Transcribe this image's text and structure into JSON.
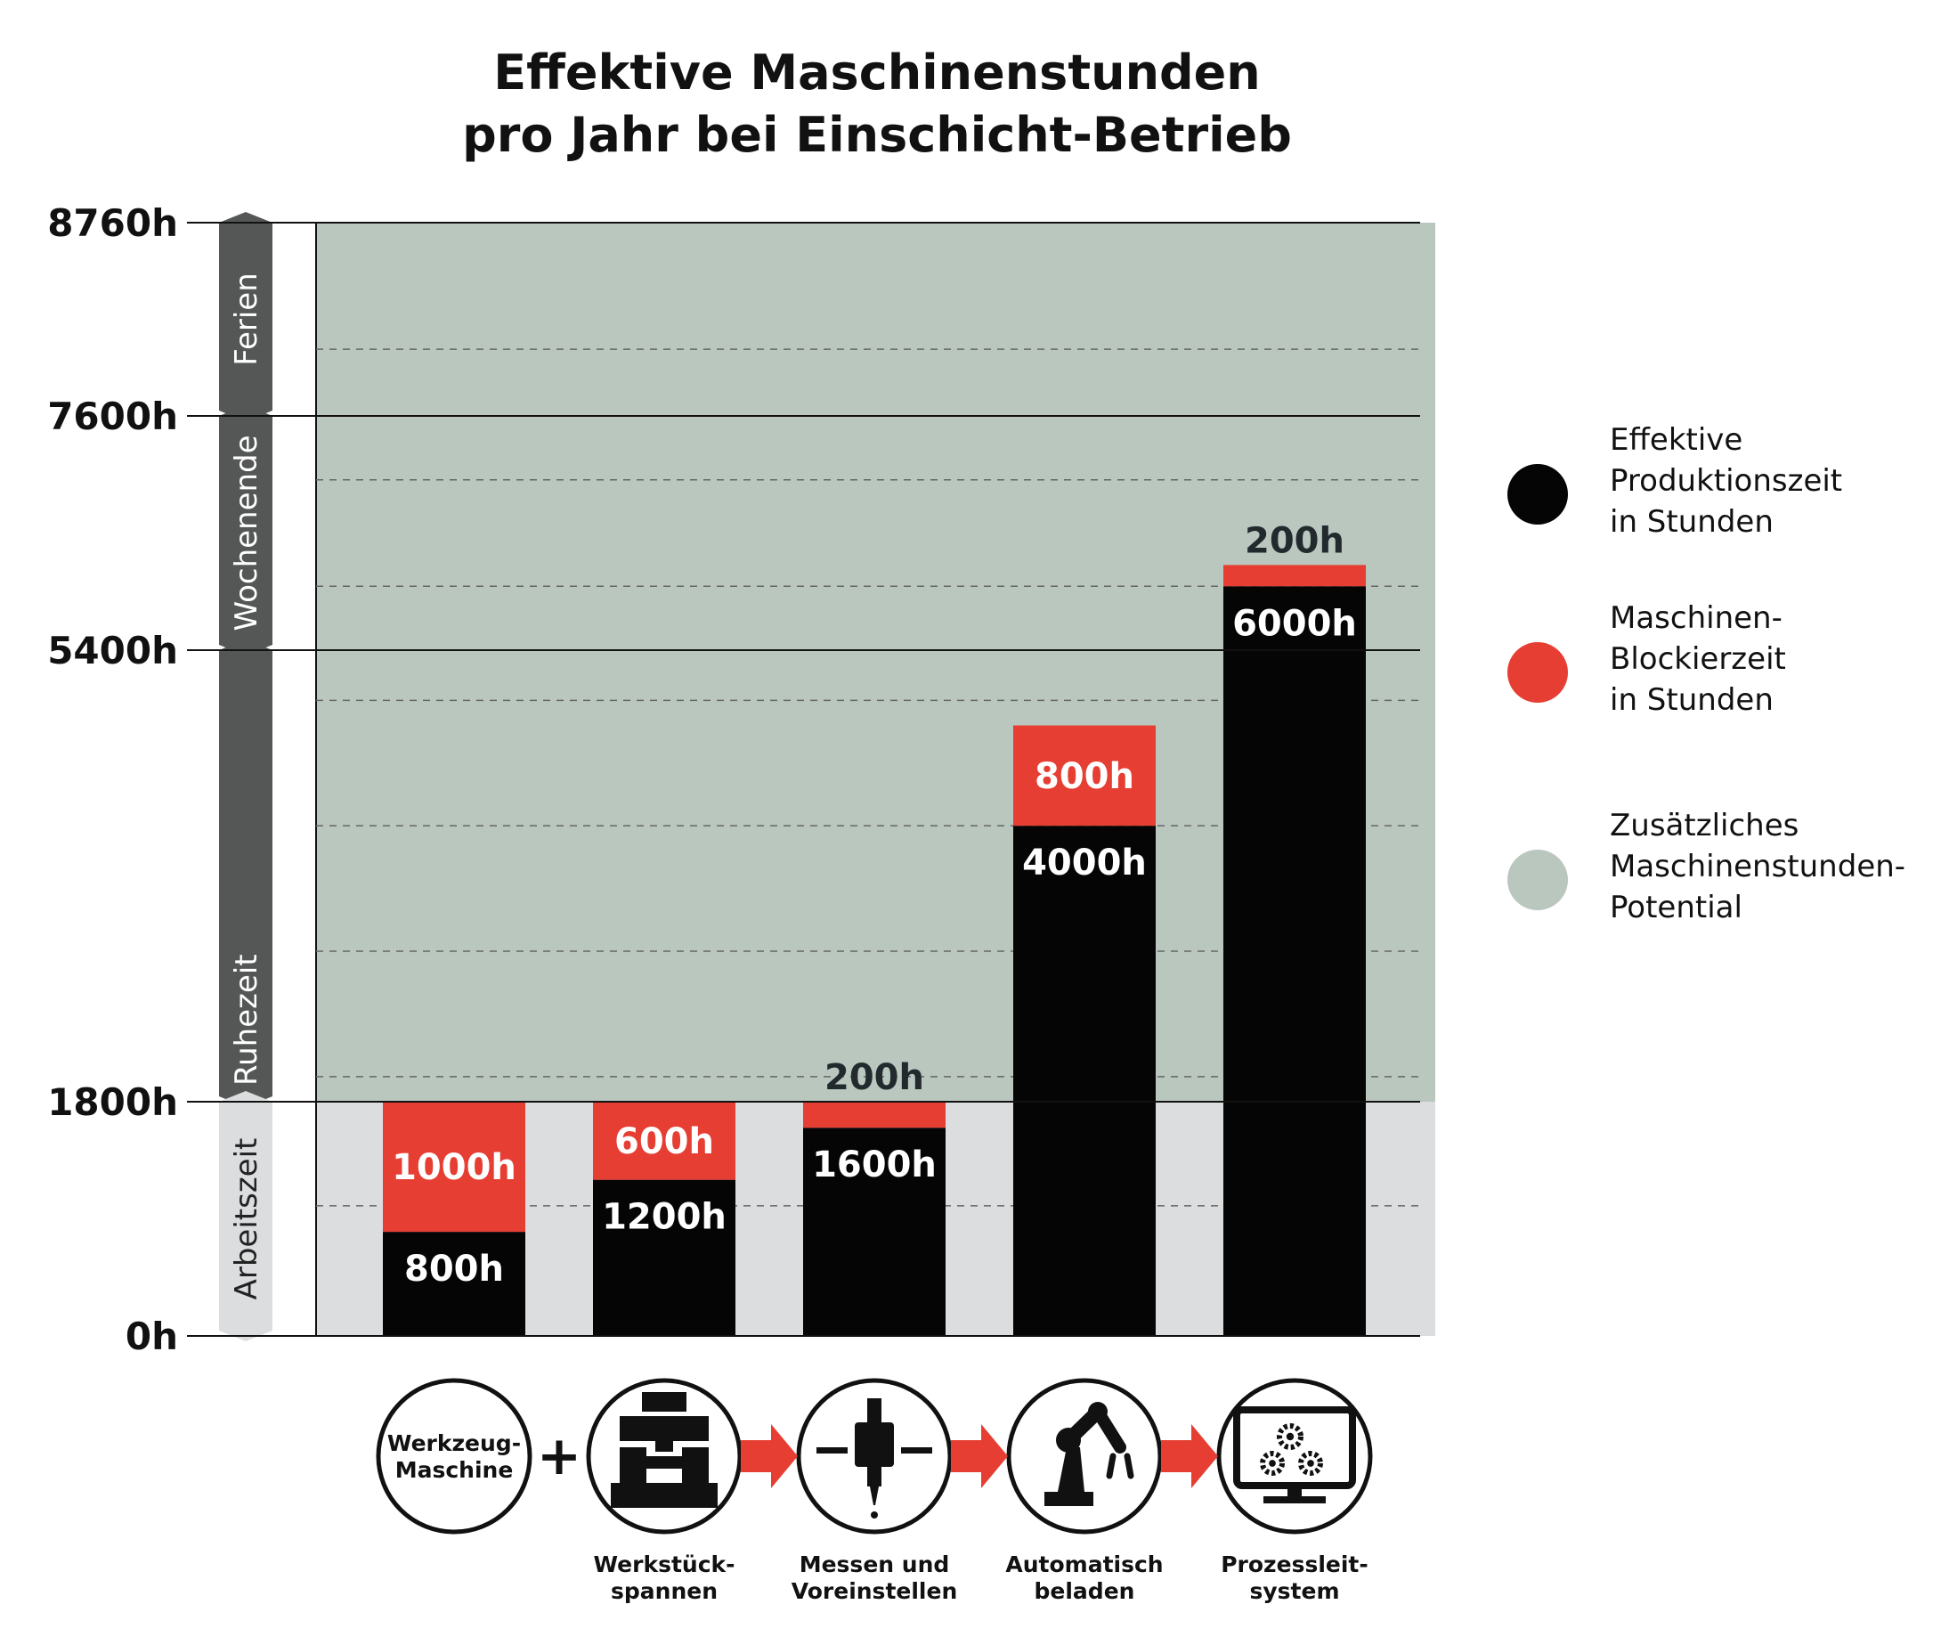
{
  "title": {
    "line1": "Effektive Maschinenstunden",
    "line2": "pro Jahr bei Einschicht-Betrieb"
  },
  "colors": {
    "effective": "#050505",
    "blocking": "#e63e33",
    "potential": "#b9c7bf",
    "worktime_bg": "#dcdddf",
    "band_dark": "#555656",
    "band_light": "#dcdddf"
  },
  "chart_data": {
    "type": "bar",
    "stacked": true,
    "title": "Effektive Maschinenstunden pro Jahr bei Einschicht-Betrieb",
    "ylabel": "",
    "ylim": [
      0,
      8760
    ],
    "y_ticks": [
      {
        "value": 0,
        "label": "0h"
      },
      {
        "value": 1800,
        "label": "1800h"
      },
      {
        "value": 5400,
        "label": "5400h"
      },
      {
        "value": 7600,
        "label": "7600h"
      },
      {
        "value": 8760,
        "label": "8760h"
      }
    ],
    "minor_gridlines": [
      1000,
      2000,
      3000,
      4000,
      5000,
      6000,
      7000,
      8000
    ],
    "potential_region": [
      1800,
      8760
    ],
    "worktime_region": [
      0,
      1800
    ],
    "categories": [
      "Werkzeug-Maschine",
      "Werkstückspannen",
      "Messen und Voreinstellen",
      "Automatisch beladen",
      "Prozessleitsystem"
    ],
    "series": [
      {
        "name": "Effektive Produktionszeit in Stunden",
        "values": [
          800,
          1200,
          1600,
          4000,
          6000
        ],
        "labels": [
          "800h",
          "1200h",
          "1600h",
          "4000h",
          "6000h"
        ]
      },
      {
        "name": "Maschinen-Blockierzeit in Stunden",
        "values": [
          1000,
          600,
          200,
          800,
          200
        ],
        "labels": [
          "1000h",
          "600h",
          "200h",
          "800h",
          "200h"
        ]
      }
    ],
    "time_bands": [
      {
        "label": "Ferien",
        "from": 7600,
        "to": 8760
      },
      {
        "label": "Wochenende",
        "from": 5400,
        "to": 7600
      },
      {
        "label": "Ruhezeit",
        "from": 1800,
        "to": 5400
      },
      {
        "label": "Arbeitszeit",
        "from": 0,
        "to": 1800
      }
    ],
    "legend": [
      {
        "label_lines": [
          "Effektive",
          "Produktionszeit",
          "in Stunden"
        ],
        "color": "#050505"
      },
      {
        "label_lines": [
          "Maschinen-",
          "Blockierzeit",
          "in Stunden"
        ],
        "color": "#e63e33"
      },
      {
        "label_lines": [
          "Zusätzliches",
          "Maschinenstunden-",
          "Potential"
        ],
        "color": "#b9c7bf"
      }
    ],
    "legend_position": "right"
  },
  "steps": [
    {
      "icon": "machine-tool",
      "inner_lines": [
        "Werkzeug-",
        "Maschine"
      ],
      "caption_lines": []
    },
    {
      "icon": "workpiece-clamp-icon",
      "inner_lines": [],
      "caption_lines": [
        "Werkstück-",
        "spannen"
      ]
    },
    {
      "icon": "measure-preset-icon",
      "inner_lines": [],
      "caption_lines": [
        "Messen und",
        "Voreinstellen"
      ]
    },
    {
      "icon": "robot-arm-icon",
      "inner_lines": [],
      "caption_lines": [
        "Automatisch",
        "beladen"
      ]
    },
    {
      "icon": "process-control-icon",
      "inner_lines": [],
      "caption_lines": [
        "Prozessleit-",
        "system"
      ]
    }
  ],
  "step_connectors": [
    "+",
    "arrow",
    "arrow",
    "arrow"
  ]
}
